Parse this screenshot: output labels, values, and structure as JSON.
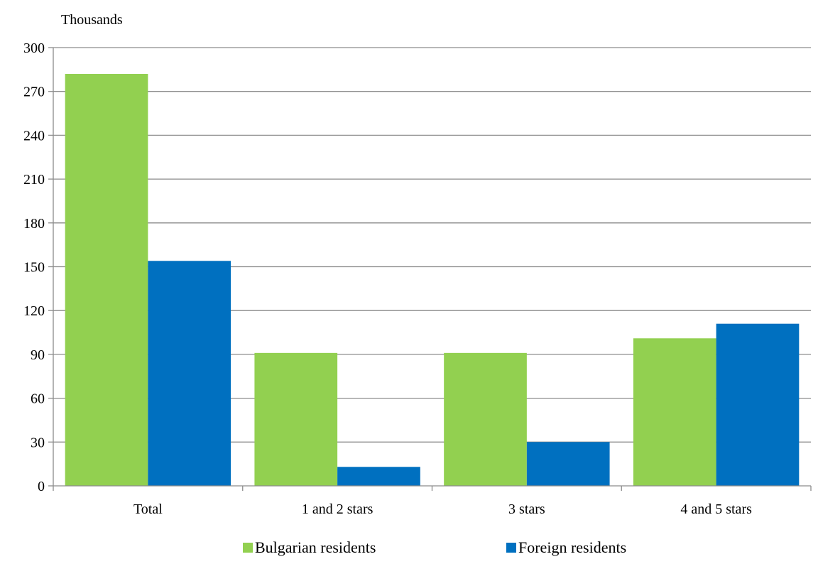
{
  "chart_data": {
    "type": "bar",
    "unit_label": "Thousands",
    "categories": [
      "Total",
      "1 and 2 stars",
      "3 stars",
      "4 and 5 stars"
    ],
    "series": [
      {
        "name": "Bulgarian residents",
        "color": "#92D050",
        "values": [
          282,
          91,
          91,
          101
        ]
      },
      {
        "name": "Foreign residents",
        "color": "#0070C0",
        "values": [
          154,
          13,
          30,
          111
        ]
      }
    ],
    "ylim": [
      0,
      300
    ],
    "yticks": [
      0,
      30,
      60,
      90,
      120,
      150,
      180,
      210,
      240,
      270,
      300
    ],
    "grid": true,
    "legend_position": "bottom"
  }
}
